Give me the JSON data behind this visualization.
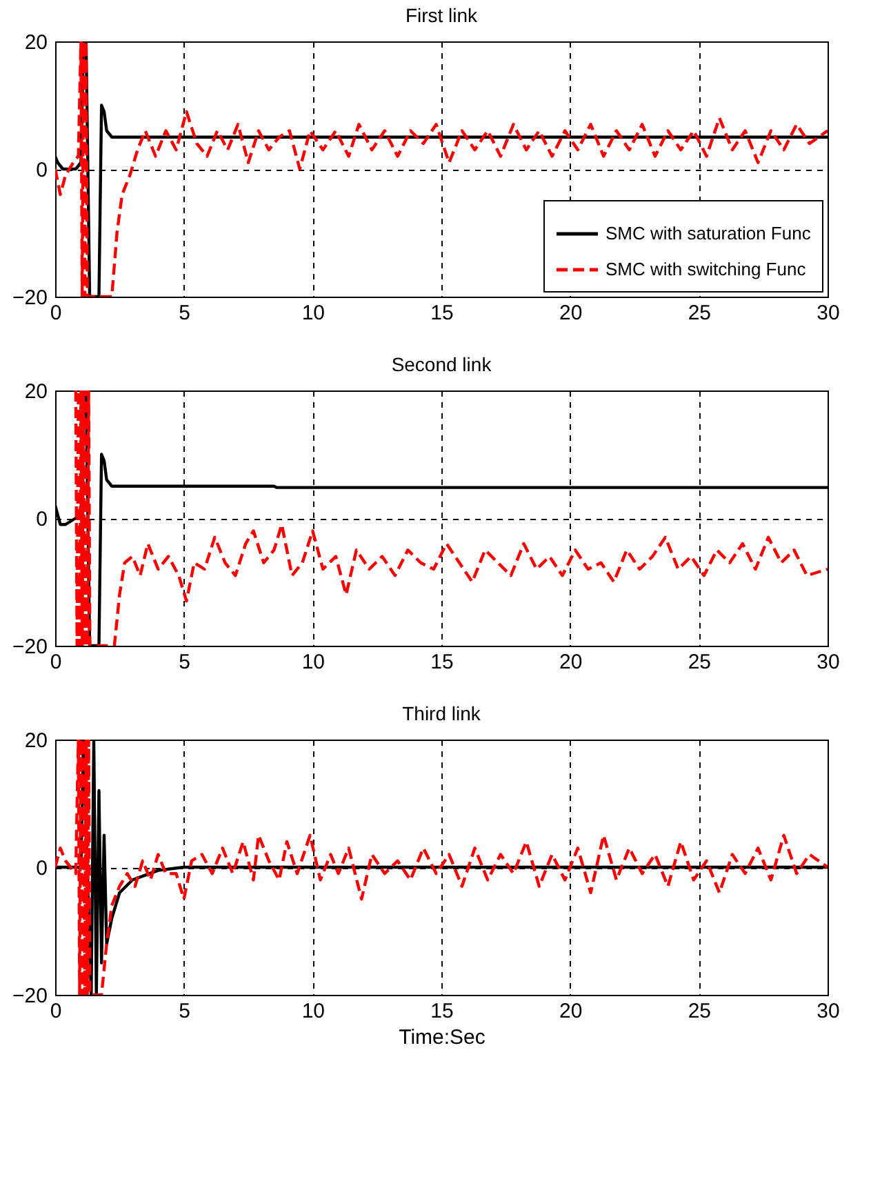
{
  "chart_data": [
    {
      "type": "line",
      "title": "First link",
      "xlim": [
        0,
        30
      ],
      "xticks": [
        0,
        5,
        10,
        15,
        20,
        25,
        30
      ],
      "ylim": [
        -20,
        20
      ],
      "yticks": [
        -20,
        0,
        20
      ],
      "grid": true,
      "legend": "bottom right",
      "series": [
        {
          "name": "SMC with saturation Func",
          "color": "#000000",
          "line_style": "solid",
          "x": [
            0,
            0.1,
            0.3,
            0.8,
            1.0,
            1.1,
            1.2,
            1.34,
            1.7,
            1.8,
            1.9,
            2.0,
            2.2,
            2.5,
            30
          ],
          "values": [
            2,
            1,
            0,
            0,
            1,
            20,
            20,
            -20,
            -20,
            10,
            9,
            6,
            5,
            5,
            5
          ]
        },
        {
          "name": "SMC with switching Func",
          "color": "#ff0000",
          "line_style": "dashed",
          "x": [
            0,
            0.2,
            0.4,
            0.7,
            0.9,
            1.0,
            1.05,
            1.1,
            1.15,
            1.2,
            1.25,
            2.2,
            2.4,
            2.6,
            2.9,
            3.2,
            3.5,
            3.9,
            4.3,
            4.7,
            5.1,
            5.5,
            5.9,
            6.3,
            6.7,
            7.1,
            7.5,
            7.9,
            8.3,
            8.7,
            9.1,
            9.5,
            9.9,
            10.4,
            10.9,
            11.4,
            11.8,
            12.3,
            12.8,
            13.3,
            13.8,
            14.3,
            14.8,
            15.3,
            15.8,
            16.3,
            16.8,
            17.3,
            17.8,
            18.3,
            18.8,
            19.3,
            19.8,
            20.3,
            20.8,
            21.3,
            21.8,
            22.3,
            22.8,
            23.3,
            23.8,
            24.3,
            24.8,
            25.3,
            25.8,
            26.3,
            26.8,
            27.3,
            27.8,
            28.3,
            28.8,
            29.3,
            30
          ],
          "values": [
            0,
            -4,
            -1,
            1,
            2,
            20,
            -20,
            20,
            -20,
            20,
            -20,
            -20,
            -10,
            -4,
            -1,
            3,
            6,
            2,
            6,
            3,
            9,
            4,
            2,
            6,
            3,
            7,
            1,
            6,
            3,
            5,
            6,
            0,
            6,
            3,
            6,
            2,
            7,
            3,
            6,
            2,
            6,
            4,
            7,
            1,
            6,
            3,
            6,
            2,
            7,
            3,
            6,
            2,
            6,
            3,
            7,
            2,
            6,
            3,
            7,
            2,
            6,
            3,
            6,
            2,
            8,
            3,
            6,
            1,
            6,
            3,
            7,
            4,
            6
          ]
        }
      ]
    },
    {
      "type": "line",
      "title": "Second link",
      "xlim": [
        0,
        30
      ],
      "xticks": [
        0,
        5,
        10,
        15,
        20,
        25,
        30
      ],
      "ylim": [
        -20,
        20
      ],
      "yticks": [
        -20,
        0,
        20
      ],
      "grid": true,
      "series": [
        {
          "color": "#000000",
          "line_style": "solid",
          "x": [
            0,
            0.2,
            0.4,
            0.8,
            1.0,
            1.1,
            1.2,
            1.34,
            1.7,
            1.8,
            1.9,
            2.0,
            2.2,
            2.5,
            8.5,
            8.6,
            30
          ],
          "values": [
            2,
            -1,
            -1,
            0,
            0,
            20,
            20,
            -20,
            -20,
            10,
            9,
            6,
            5,
            5,
            5,
            4.8,
            4.8
          ]
        },
        {
          "color": "#ff0000",
          "line_style": "dashed",
          "x": [
            0.8,
            0.85,
            0.9,
            0.95,
            1.0,
            1.05,
            1.1,
            1.15,
            1.2,
            1.25,
            1.3,
            1.35,
            2.3,
            2.5,
            2.7,
            3.0,
            3.3,
            3.6,
            4.0,
            4.4,
            4.8,
            5.1,
            5.4,
            5.8,
            6.2,
            6.6,
            7.0,
            7.4,
            7.7,
            8.1,
            8.5,
            8.8,
            9.2,
            9.6,
            10.0,
            10.4,
            10.9,
            11.3,
            11.7,
            12.2,
            12.7,
            13.2,
            13.7,
            14.2,
            14.7,
            15.2,
            15.7,
            16.2,
            16.7,
            17.2,
            17.7,
            18.2,
            18.7,
            19.2,
            19.7,
            20.2,
            20.7,
            21.2,
            21.7,
            22.2,
            22.7,
            23.2,
            23.7,
            24.2,
            24.7,
            25.2,
            25.7,
            26.2,
            26.7,
            27.2,
            27.7,
            28.2,
            28.7,
            29.2,
            30
          ],
          "values": [
            20,
            -20,
            20,
            -20,
            20,
            -20,
            20,
            -20,
            20,
            -20,
            20,
            -20,
            -20,
            -12,
            -7,
            -6,
            -9,
            -4,
            -8,
            -6,
            -9,
            -13,
            -7,
            -8,
            -3,
            -7,
            -9,
            -4,
            -2,
            -7,
            -5,
            -1,
            -9,
            -7,
            -2,
            -8,
            -6,
            -12,
            -5,
            -8,
            -6,
            -9,
            -5,
            -7,
            -8,
            -4,
            -7,
            -10,
            -5,
            -7,
            -9,
            -4,
            -8,
            -6,
            -9,
            -5,
            -8,
            -7,
            -10,
            -5,
            -8,
            -6,
            -3,
            -8,
            -6,
            -9,
            -5,
            -7,
            -4,
            -8,
            -3,
            -7,
            -5,
            -9,
            -8
          ]
        }
      ]
    },
    {
      "type": "line",
      "title": "Third link",
      "xlabel": "Time:Sec",
      "xlim": [
        0,
        30
      ],
      "xticks": [
        0,
        5,
        10,
        15,
        20,
        25,
        30
      ],
      "ylim": [
        -20,
        20
      ],
      "yticks": [
        -20,
        0,
        20
      ],
      "grid": true,
      "series": [
        {
          "color": "#000000",
          "line_style": "solid",
          "x": [
            0,
            1.0,
            1.1,
            1.4,
            1.5,
            1.6,
            1.7,
            1.8,
            1.9,
            2.0,
            2.2,
            2.5,
            3,
            4,
            5,
            30
          ],
          "values": [
            0,
            0,
            20,
            -20,
            20,
            -20,
            12,
            -15,
            5,
            -12,
            -8,
            -4,
            -2,
            -0.5,
            0,
            0
          ]
        },
        {
          "color": "#ff0000",
          "line_style": "dashed",
          "x": [
            0,
            0.2,
            0.4,
            0.6,
            0.8,
            0.9,
            0.95,
            1.0,
            1.05,
            1.1,
            1.15,
            1.2,
            1.25,
            1.3,
            1.35,
            1.4,
            1.8,
            2.0,
            2.2,
            2.5,
            2.8,
            3.1,
            3.4,
            3.7,
            4.0,
            4.3,
            4.7,
            5.0,
            5.3,
            5.7,
            6.1,
            6.5,
            6.9,
            7.3,
            7.7,
            7.9,
            8.3,
            8.7,
            9.0,
            9.4,
            9.9,
            10.3,
            10.7,
            11.0,
            11.4,
            11.9,
            12.3,
            12.8,
            13.3,
            13.8,
            14.3,
            14.8,
            15.3,
            15.8,
            16.3,
            16.8,
            17.3,
            17.8,
            18.3,
            18.8,
            19.3,
            19.8,
            20.3,
            20.8,
            21.3,
            21.8,
            22.3,
            22.8,
            23.3,
            23.8,
            24.3,
            24.8,
            25.3,
            25.8,
            26.3,
            26.8,
            27.3,
            27.8,
            28.3,
            28.8,
            29.3,
            30
          ],
          "values": [
            0,
            3,
            1,
            0,
            -1,
            20,
            -20,
            20,
            -20,
            20,
            -20,
            20,
            -20,
            20,
            -20,
            -20,
            -20,
            -12,
            -6,
            -3,
            -1,
            -3,
            1,
            -2,
            2,
            -1,
            -1,
            -5,
            1,
            2,
            -1,
            3,
            -1,
            4,
            -2,
            5,
            1,
            -2,
            4,
            -1,
            5,
            -2,
            2,
            -1,
            3,
            -5,
            2,
            -1,
            1,
            -2,
            3,
            -1,
            2,
            -3,
            3,
            -2,
            2,
            -1,
            4,
            -3,
            2,
            -2,
            3,
            -4,
            5,
            -2,
            3,
            -1,
            2,
            -3,
            4,
            -2,
            1,
            -4,
            2,
            -1,
            3,
            -2,
            5,
            -1,
            2,
            0
          ]
        }
      ]
    }
  ]
}
